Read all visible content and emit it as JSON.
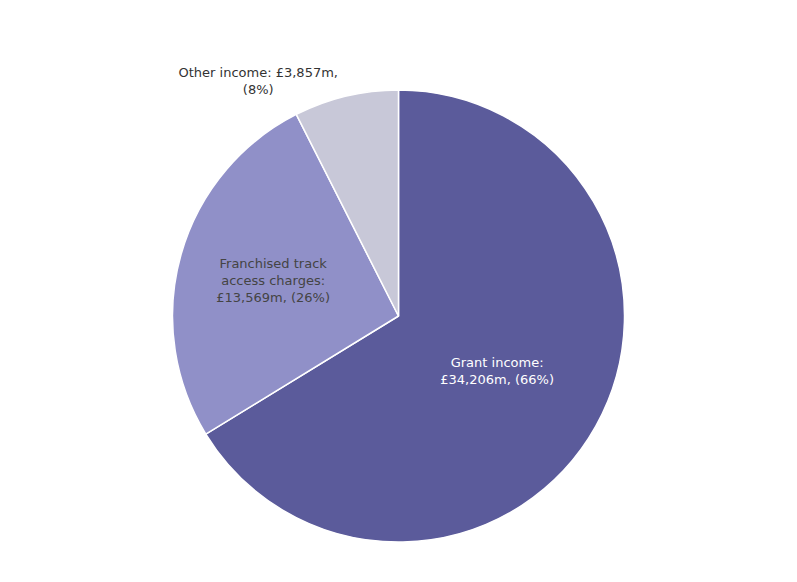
{
  "chart_data": {
    "type": "pie",
    "categories": [
      "Grant income",
      "Franchised track access charges",
      "Other income"
    ],
    "values": [
      34206,
      13569,
      3857
    ],
    "value_labels": [
      "Grant income:\n£34,206m, (66%)",
      "Franchised track\naccess charges:\n£13,569m, (26%)",
      "Other income: £3,857m,\n(8%)"
    ],
    "colors": [
      "#5b5b9b",
      "#9090c8",
      "#c8c8d8"
    ],
    "data_labels": true,
    "legend": false
  }
}
